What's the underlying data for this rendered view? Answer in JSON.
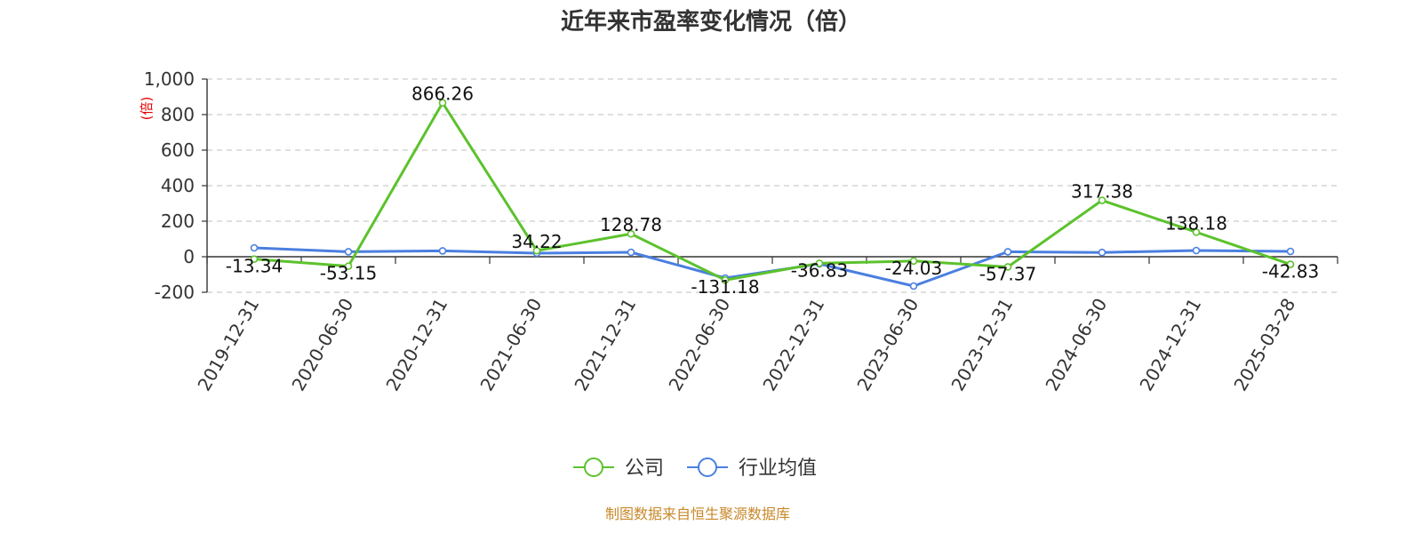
{
  "chart_data": {
    "type": "line",
    "title": "近年来市盈率变化情况（倍）",
    "ylabel": "(倍)",
    "xlabel": "",
    "categories": [
      "2019-12-31",
      "2020-06-30",
      "2020-12-31",
      "2021-06-30",
      "2021-12-31",
      "2022-06-30",
      "2022-12-31",
      "2023-06-30",
      "2023-12-31",
      "2024-06-30",
      "2024-12-31",
      "2025-03-28"
    ],
    "ylim": [
      -200,
      1000
    ],
    "yticks": [
      -200,
      0,
      200,
      400,
      600,
      800,
      1000
    ],
    "ytick_labels": [
      "-200",
      "0",
      "200",
      "400",
      "600",
      "800",
      "1,000"
    ],
    "grid": true,
    "legend_position": "bottom",
    "series": [
      {
        "name": "公司",
        "color": "#5cc22c",
        "values": [
          -13.34,
          -53.15,
          866.26,
          34.22,
          128.78,
          -131.18,
          -36.83,
          -24.03,
          -57.37,
          317.38,
          138.18,
          -42.83
        ],
        "labels": [
          "-13.34",
          "-53.15",
          "866.26",
          "34.22",
          "128.78",
          "-131.18",
          "-36.83",
          "-24.03",
          "-57.37",
          "317.38",
          "138.18",
          "-42.83"
        ]
      },
      {
        "name": "行业均值",
        "color": "#4a7fe0",
        "values": [
          50,
          28,
          33,
          20,
          25,
          -120,
          -40,
          -165,
          28,
          24,
          35,
          30
        ]
      }
    ],
    "source": "制图数据来自恒生聚源数据库"
  }
}
